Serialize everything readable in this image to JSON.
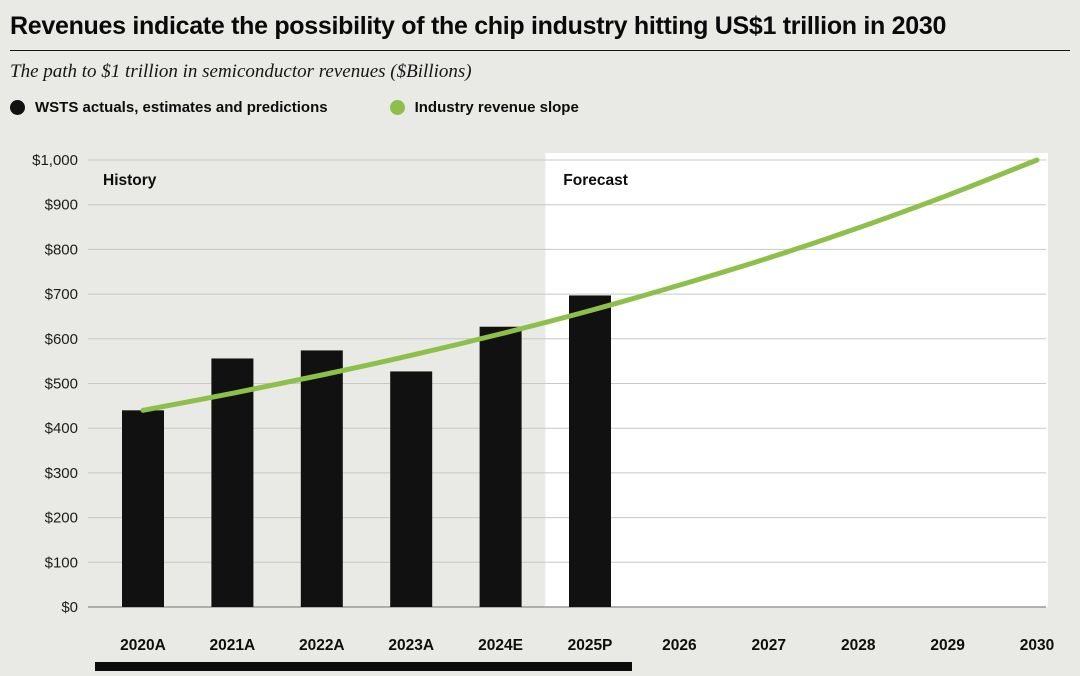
{
  "page": {
    "title": "Revenues indicate the possibility of the chip industry hitting US$1 trillion in 2030",
    "subtitle": "The path to $1 trillion in semiconductor revenues ($Billions)"
  },
  "legend": [
    {
      "label": "WSTS actuals, estimates and predictions",
      "color": "#111111",
      "marker": "black-dot"
    },
    {
      "label": "Industry revenue slope",
      "color": "#8dc04a",
      "marker": "green-dot"
    }
  ],
  "colors": {
    "page_background": "#e9e9e6",
    "forecast_background": "#ffffff",
    "bar": "#111111",
    "line": "#8dc04a",
    "gridline": "#c8c8c5",
    "baseline": "#9b9b98"
  },
  "chart_data": {
    "type": "bar",
    "title": "The path to $1 trillion in semiconductor revenues ($Billions)",
    "categories": [
      "2020A",
      "2021A",
      "2022A",
      "2023A",
      "2024E",
      "2025P",
      "2026",
      "2027",
      "2028",
      "2029",
      "2030"
    ],
    "series": [
      {
        "name": "WSTS actuals, estimates and predictions",
        "type": "bar",
        "color": "#111111",
        "values": [
          440,
          556,
          574,
          527,
          627,
          697,
          null,
          null,
          null,
          null,
          null
        ]
      },
      {
        "name": "Industry revenue slope",
        "type": "line",
        "color": "#8dc04a",
        "values": [
          440,
          478,
          519,
          563,
          611,
          663,
          720,
          781,
          848,
          921,
          1000
        ]
      }
    ],
    "xlabel": "",
    "ylabel": "",
    "ylim": [
      0,
      1000
    ],
    "ytick_step": 100,
    "ytick_labels": [
      "$0",
      "$100",
      "$200",
      "$300",
      "$400",
      "$500",
      "$600",
      "$700",
      "$800",
      "$900",
      "$1,000"
    ],
    "regions": [
      {
        "label": "History",
        "from": "2020A",
        "to": "2024E"
      },
      {
        "label": "Forecast",
        "from": "2025P",
        "to": "2030"
      }
    ],
    "grid": true,
    "legend_position": "top"
  }
}
